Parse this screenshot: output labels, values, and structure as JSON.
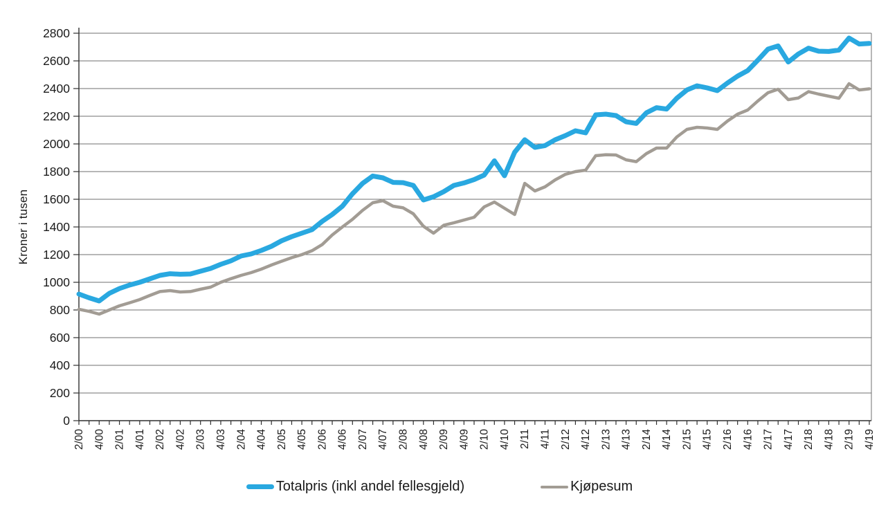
{
  "page": {
    "background_color": "#ffffff"
  },
  "chart": {
    "y_axis_title": "Kroner i tusen",
    "colors": {
      "totalpris_line": "#29a8e0",
      "kjopesum_line": "#a29c94",
      "gridline": "#6f6f6f",
      "axis_line": "#2f2f2f",
      "text": "#1a1a1a"
    }
  },
  "chart_data": {
    "type": "line",
    "title": "",
    "ylabel": "Kroner i tusen",
    "xlabel": "",
    "ylim": [
      0,
      2800
    ],
    "y_tick_step": 200,
    "y_tick_labels": [
      "0",
      "200",
      "400",
      "600",
      "800",
      "1000",
      "1200",
      "1400",
      "1600",
      "1800",
      "2000",
      "2200",
      "2400",
      "2600",
      "2800"
    ],
    "grid": "horizontal",
    "legend_position": "bottom",
    "x_label_every": 2,
    "x": [
      "2/00",
      "3/00",
      "4/00",
      "1/01",
      "2/01",
      "3/01",
      "4/01",
      "1/02",
      "2/02",
      "3/02",
      "4/02",
      "1/03",
      "2/03",
      "3/03",
      "4/03",
      "1/04",
      "2/04",
      "3/04",
      "4/04",
      "1/05",
      "2/05",
      "3/05",
      "4/05",
      "1/06",
      "2/06",
      "3/06",
      "4/06",
      "1/07",
      "2/07",
      "3/07",
      "4/07",
      "1/08",
      "2/08",
      "3/08",
      "4/08",
      "1/09",
      "2/09",
      "3/09",
      "4/09",
      "1/10",
      "2/10",
      "3/10",
      "4/10",
      "1/11",
      "2/11",
      "3/11",
      "4/11",
      "1/12",
      "2/12",
      "3/12",
      "4/12",
      "1/13",
      "2/13",
      "3/13",
      "4/13",
      "1/14",
      "2/14",
      "3/14",
      "4/14",
      "1/15",
      "2/15",
      "3/15",
      "4/15",
      "1/16",
      "2/16",
      "3/16",
      "4/16",
      "1/17",
      "2/17",
      "3/17",
      "4/17",
      "1/18",
      "2/18",
      "3/18",
      "4/18",
      "1/19",
      "2/19",
      "3/19",
      "4/19"
    ],
    "series": [
      {
        "name": "Totalpris (inkl andel fellesgjeld)",
        "color": "#29a8e0",
        "stroke_width": 7,
        "values": [
          915,
          888,
          865,
          920,
          955,
          980,
          1000,
          1025,
          1050,
          1062,
          1058,
          1060,
          1080,
          1100,
          1130,
          1155,
          1190,
          1205,
          1230,
          1260,
          1300,
          1330,
          1355,
          1380,
          1440,
          1490,
          1550,
          1640,
          1715,
          1768,
          1755,
          1722,
          1720,
          1700,
          1595,
          1618,
          1655,
          1700,
          1718,
          1742,
          1775,
          1878,
          1770,
          1940,
          2030,
          1975,
          1988,
          2030,
          2060,
          2095,
          2080,
          2210,
          2215,
          2205,
          2160,
          2148,
          2225,
          2262,
          2252,
          2330,
          2390,
          2420,
          2405,
          2385,
          2440,
          2490,
          2530,
          2605,
          2685,
          2708,
          2592,
          2650,
          2692,
          2670,
          2668,
          2678,
          2765,
          2722,
          2726
        ]
      },
      {
        "name": "Kjøpesum",
        "color": "#a29c94",
        "stroke_width": 4.5,
        "values": [
          805,
          790,
          770,
          800,
          830,
          852,
          875,
          905,
          933,
          940,
          930,
          933,
          950,
          965,
          1000,
          1026,
          1050,
          1070,
          1095,
          1125,
          1152,
          1178,
          1200,
          1228,
          1272,
          1342,
          1400,
          1455,
          1520,
          1575,
          1590,
          1550,
          1538,
          1495,
          1405,
          1355,
          1412,
          1430,
          1450,
          1470,
          1545,
          1580,
          1535,
          1490,
          1715,
          1660,
          1690,
          1740,
          1780,
          1800,
          1810,
          1915,
          1922,
          1920,
          1885,
          1872,
          1930,
          1970,
          1970,
          2050,
          2105,
          2120,
          2115,
          2105,
          2165,
          2215,
          2245,
          2310,
          2370,
          2395,
          2320,
          2332,
          2378,
          2360,
          2345,
          2330,
          2435,
          2390,
          2398
        ]
      }
    ]
  }
}
